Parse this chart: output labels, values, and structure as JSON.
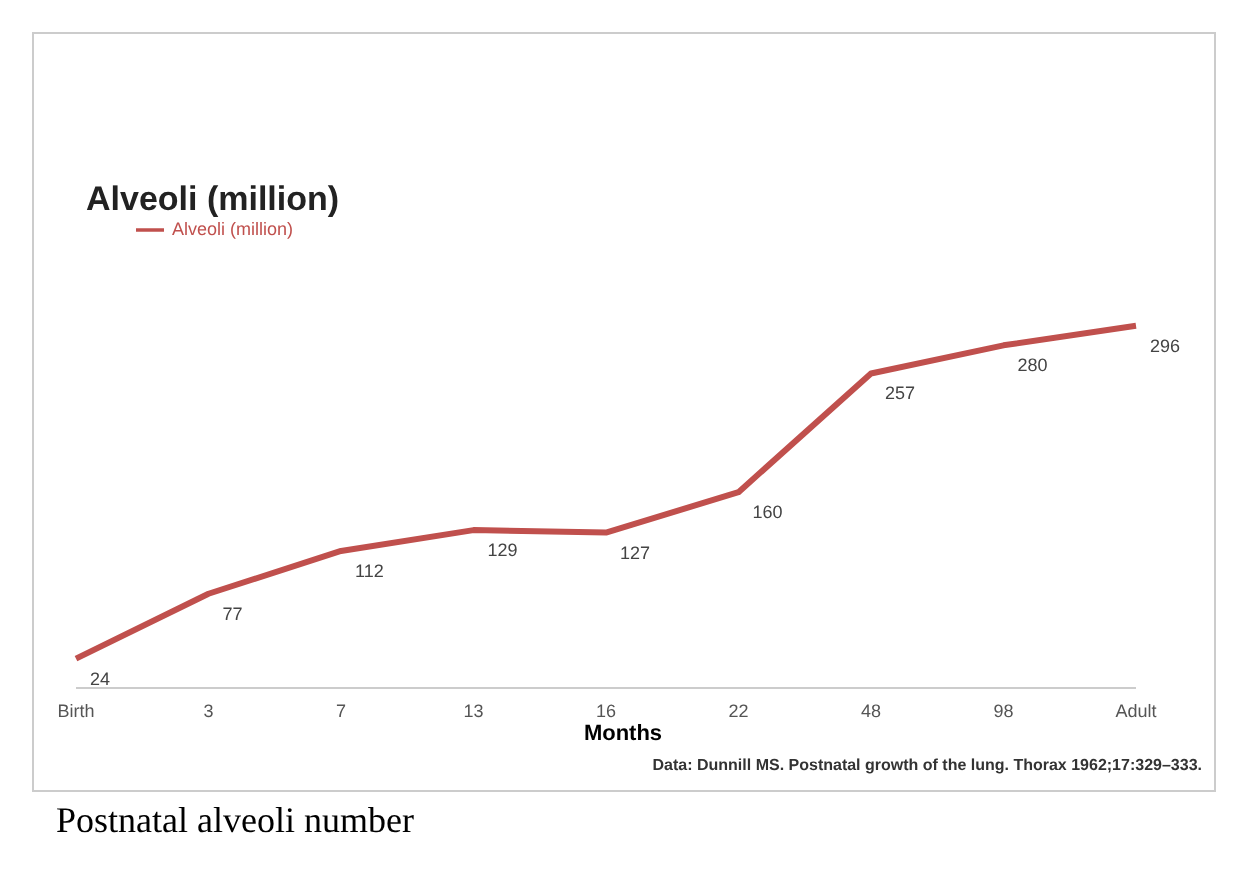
{
  "chart_data": {
    "type": "line",
    "title": "Alveoli (million)",
    "xlabel": "Months",
    "categories": [
      "Birth",
      "3",
      "7",
      "13",
      "16",
      "22",
      "48",
      "98",
      "Adult"
    ],
    "series": [
      {
        "name": "Alveoli (million)",
        "color": "#c0504d",
        "values": [
          24,
          77,
          112,
          129,
          127,
          160,
          257,
          280,
          296
        ]
      }
    ],
    "data_labels": true,
    "legend": "top left",
    "marker": "none",
    "line_style": "solid",
    "annotations": [
      "Data: Dunnill MS. Postnatal growth of the lung. Thorax 1962;17:329–333.",
      "Postnatal alveoli number"
    ]
  }
}
